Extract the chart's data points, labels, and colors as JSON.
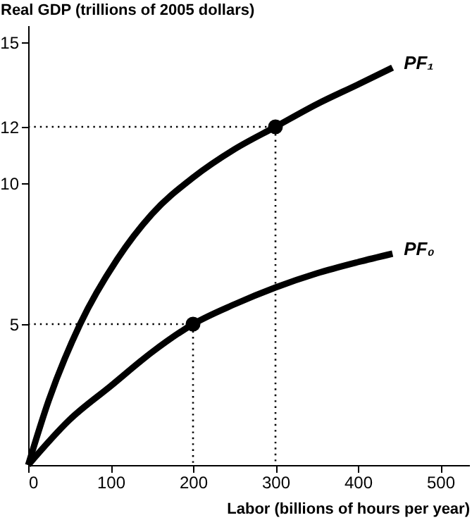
{
  "chart_data": {
    "type": "line",
    "xlabel": "Labor (billions of hours per  year)",
    "ylabel": "Real GDP (trillions of 2005 dollars)",
    "xlim": [
      0,
      535
    ],
    "ylim": [
      0,
      15.6
    ],
    "xticks": [
      0,
      100,
      200,
      300,
      400,
      500
    ],
    "yticks": [
      5,
      10,
      12,
      15
    ],
    "grid": false,
    "marker": "none",
    "line_style": "solid",
    "series": [
      {
        "name": "PF₁",
        "color": "#000000",
        "x": [
          0,
          25,
          63,
          108,
          150,
          200,
          250,
          300,
          350,
          400,
          442
        ],
        "values": [
          0,
          2.3,
          5,
          7.3,
          8.9,
          10.2,
          11.2,
          12,
          12.8,
          13.5,
          14.1
        ]
      },
      {
        "name": "PF₀",
        "color": "#000000",
        "x": [
          0,
          50,
          100,
          150,
          200,
          250,
          300,
          350,
          400,
          442
        ],
        "values": [
          0,
          1.6,
          2.8,
          4,
          5,
          5.7,
          6.3,
          6.8,
          7.2,
          7.5
        ]
      },
      {
        "color": "#000000",
        "line_style": "dotted",
        "x": [
          0,
          200,
          200
        ],
        "values": [
          5,
          5,
          0
        ]
      },
      {
        "color": "#000000",
        "line_style": "dotted",
        "x": [
          0,
          300,
          300
        ],
        "values": [
          12,
          12,
          0
        ]
      },
      {
        "type": "scatter",
        "color": "#000000",
        "marker": "circle",
        "x": [
          200,
          300
        ],
        "values": [
          5,
          12
        ]
      }
    ]
  }
}
